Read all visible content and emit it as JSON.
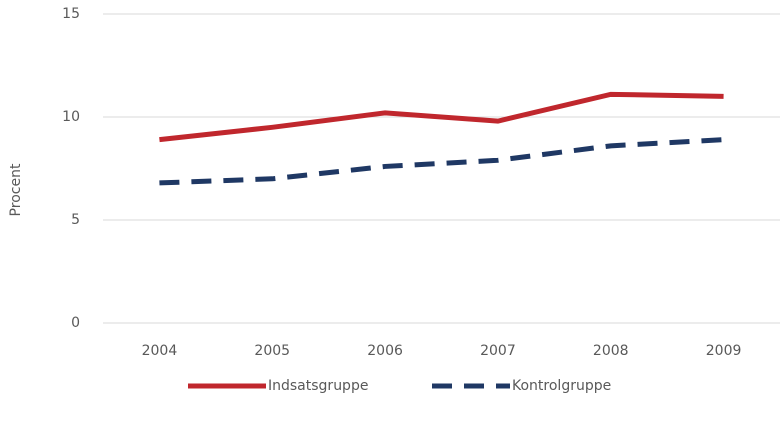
{
  "chart_data": {
    "type": "line",
    "y_label": "Procent",
    "categories": [
      "2004",
      "2005",
      "2006",
      "2007",
      "2008",
      "2009"
    ],
    "series": [
      {
        "name": "Indsatsgruppe",
        "color": "#c0272d",
        "dash": "solid",
        "values": [
          8.9,
          9.5,
          10.2,
          9.8,
          11.1,
          11.0
        ]
      },
      {
        "name": "Kontrolgruppe",
        "color": "#1f3864",
        "dash": "dashed",
        "values": [
          6.8,
          7.0,
          7.6,
          7.9,
          8.6,
          8.9
        ]
      }
    ],
    "ylim": [
      0,
      15
    ],
    "yticks": [
      0,
      5,
      10,
      15
    ],
    "grid": true,
    "legend": "bottom"
  }
}
